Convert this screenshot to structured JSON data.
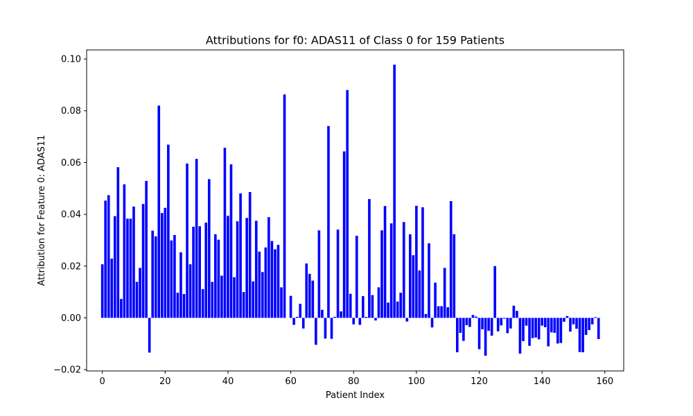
{
  "chart_data": {
    "type": "bar",
    "title": "Attributions for f0: ADAS11 of Class 0 for 159 Patients",
    "xlabel": "Patient Index",
    "ylabel": "Attribution for Feature 0: ADAS11",
    "xlim": [
      -5,
      166
    ],
    "ylim": [
      -0.0205,
      0.1035
    ],
    "xticks": [
      0,
      20,
      40,
      60,
      80,
      100,
      120,
      140,
      160
    ],
    "yticks": [
      -0.02,
      0.0,
      0.02,
      0.04,
      0.06,
      0.08,
      0.1
    ],
    "ytick_labels": [
      "−0.02",
      "0.00",
      "0.02",
      "0.04",
      "0.06",
      "0.08",
      "0.10"
    ],
    "bar_color": "#0000ff",
    "grid": false,
    "x": [
      0,
      1,
      2,
      3,
      4,
      5,
      6,
      7,
      8,
      9,
      10,
      11,
      12,
      13,
      14,
      15,
      16,
      17,
      18,
      19,
      20,
      21,
      22,
      23,
      24,
      25,
      26,
      27,
      28,
      29,
      30,
      31,
      32,
      33,
      34,
      35,
      36,
      37,
      38,
      39,
      40,
      41,
      42,
      43,
      44,
      45,
      46,
      47,
      48,
      49,
      50,
      51,
      52,
      53,
      54,
      55,
      56,
      57,
      58,
      59,
      60,
      61,
      62,
      63,
      64,
      65,
      66,
      67,
      68,
      69,
      70,
      71,
      72,
      73,
      74,
      75,
      76,
      77,
      78,
      79,
      80,
      81,
      82,
      83,
      84,
      85,
      86,
      87,
      88,
      89,
      90,
      91,
      92,
      93,
      94,
      95,
      96,
      97,
      98,
      99,
      100,
      101,
      102,
      103,
      104,
      105,
      106,
      107,
      108,
      109,
      110,
      111,
      112,
      113,
      114,
      115,
      116,
      117,
      118,
      119,
      120,
      121,
      122,
      123,
      124,
      125,
      126,
      127,
      128,
      129,
      130,
      131,
      132,
      133,
      134,
      135,
      136,
      137,
      138,
      139,
      140,
      141,
      142,
      143,
      144,
      145,
      146,
      147,
      148,
      149,
      150,
      151,
      152,
      153,
      154,
      155,
      156,
      157,
      158
    ],
    "values": [
      0.0207,
      0.0453,
      0.0474,
      0.0229,
      0.0393,
      0.0582,
      0.0073,
      0.0516,
      0.0383,
      0.0383,
      0.043,
      0.0139,
      0.0193,
      0.044,
      0.0529,
      -0.0134,
      0.0337,
      0.0315,
      0.082,
      0.0405,
      0.0425,
      0.0669,
      0.0299,
      0.032,
      0.0097,
      0.0253,
      0.0092,
      0.0596,
      0.0207,
      0.0352,
      0.0614,
      0.0354,
      0.0111,
      0.0368,
      0.0536,
      0.0139,
      0.0323,
      0.0302,
      0.0163,
      0.0657,
      0.0394,
      0.0593,
      0.0157,
      0.0373,
      0.0481,
      0.01,
      0.0386,
      0.0486,
      0.0141,
      0.0375,
      0.0256,
      0.0177,
      0.0272,
      0.0389,
      0.0297,
      0.0265,
      0.0282,
      0.0118,
      0.0863,
      0.0,
      0.0085,
      -0.0027,
      0.0004,
      0.0054,
      -0.0041,
      0.021,
      0.017,
      0.0144,
      -0.0104,
      0.0338,
      0.0031,
      -0.008,
      0.0741,
      -0.0081,
      0.0004,
      0.0341,
      0.0025,
      0.0643,
      0.088,
      0.0093,
      -0.0025,
      0.0317,
      -0.0027,
      0.0084,
      0.0004,
      0.0459,
      0.0088,
      -0.001,
      0.0118,
      0.0338,
      0.0432,
      0.0059,
      0.0365,
      0.0978,
      0.0063,
      0.0097,
      0.037,
      -0.0014,
      0.0323,
      0.0242,
      0.0433,
      0.0183,
      0.0427,
      0.0015,
      0.0288,
      -0.0037,
      0.0136,
      0.0045,
      0.0045,
      0.0193,
      0.0041,
      0.0451,
      0.0323,
      -0.0133,
      -0.0058,
      -0.0089,
      -0.0028,
      -0.0035,
      0.0011,
      0.0005,
      -0.0121,
      -0.0044,
      -0.0146,
      -0.005,
      -0.0069,
      0.02,
      -0.0052,
      -0.0029,
      -0.0003,
      -0.0059,
      -0.0041,
      0.0047,
      0.0027,
      -0.0138,
      -0.009,
      -0.003,
      -0.0108,
      -0.0078,
      -0.0076,
      -0.0083,
      -0.003,
      -0.0036,
      -0.011,
      -0.0056,
      -0.0058,
      -0.0099,
      -0.0097,
      -0.0015,
      0.0007,
      -0.0053,
      -0.0025,
      -0.0042,
      -0.0132,
      -0.0133,
      -0.0066,
      -0.0047,
      -0.0025,
      0.0003,
      -0.0082
    ]
  }
}
